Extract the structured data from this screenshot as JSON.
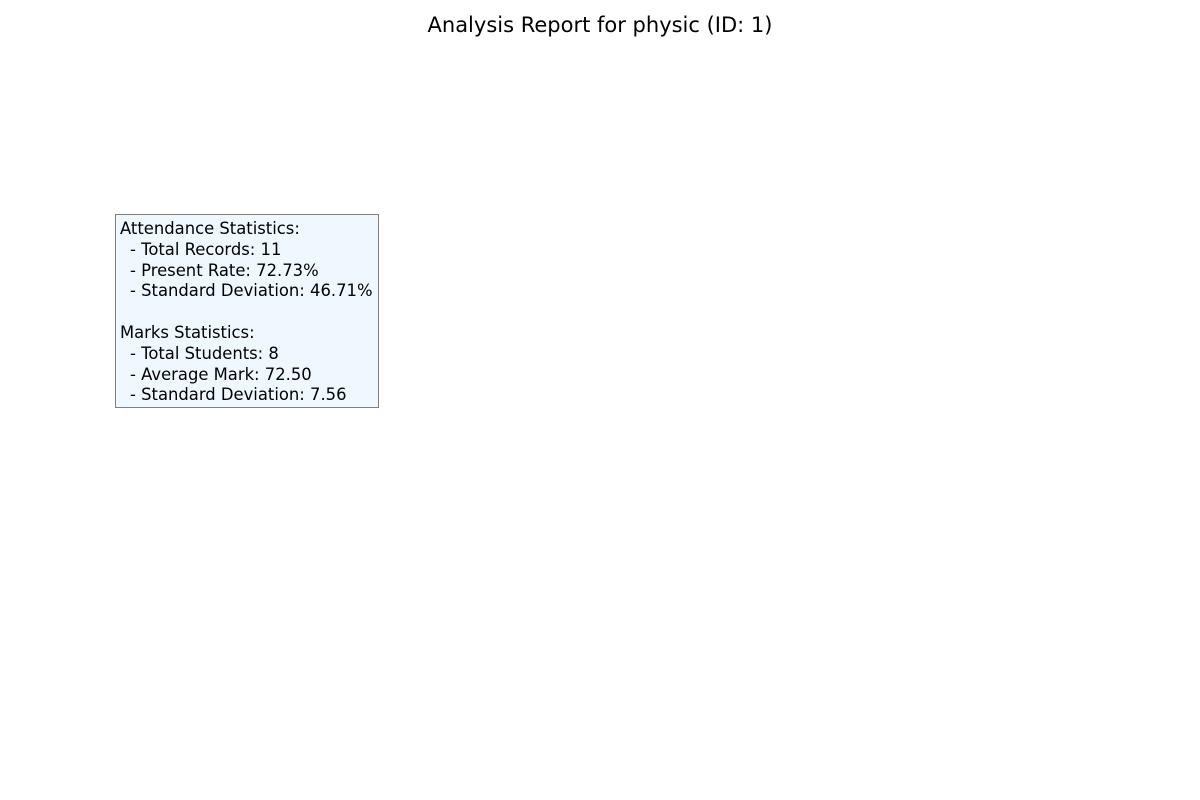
{
  "title": "Analysis Report for physic (ID: 1)",
  "attendance": {
    "heading": "Attendance Statistics:",
    "total_records": "- Total Records: 11",
    "present_rate": "- Present Rate: 72.73%",
    "std_dev": "- Standard Deviation: 46.71%"
  },
  "marks": {
    "heading": "Marks Statistics:",
    "total_students": "- Total Students: 8",
    "average_mark": "- Average Mark: 72.50",
    "std_dev": "- Standard Deviation: 7.56"
  },
  "colors": {
    "box_background": "#f0f8ff",
    "box_border": "#7f7f7f"
  }
}
